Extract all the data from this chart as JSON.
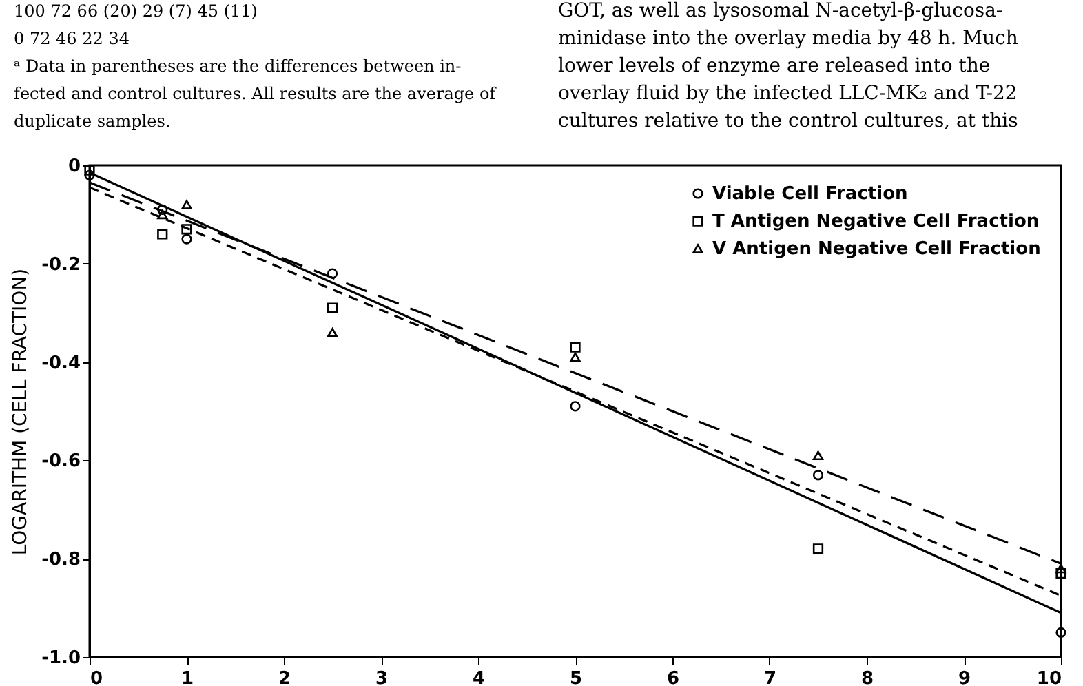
{
  "chart_data": {
    "type": "scatter",
    "ylabel": "LOGARITHM (CELL FRACTION)",
    "xlim": [
      0,
      10
    ],
    "xticks": [
      0,
      1,
      2,
      3,
      4,
      5,
      6,
      7,
      8,
      9,
      10
    ],
    "ylim": [
      -1.0,
      0
    ],
    "yticks": [
      0,
      -0.2,
      -0.4,
      -0.6,
      -0.8,
      {
        "value": -1.0,
        "label": "-1.0"
      }
    ],
    "grid": false,
    "legend": "top right",
    "series": [
      {
        "name": "Viable Cell Fraction",
        "marker": "circle",
        "color": "#000000",
        "x": [
          0,
          0.75,
          1,
          2.5,
          5,
          7.5,
          10
        ],
        "values": [
          -0.02,
          -0.09,
          -0.15,
          -0.22,
          -0.49,
          -0.63,
          -0.95
        ]
      },
      {
        "name": "T Antigen Negative Cell Fraction",
        "marker": "square",
        "color": "#000000",
        "x": [
          0,
          0.75,
          1,
          2.5,
          5,
          7.5,
          10
        ],
        "values": [
          -0.01,
          -0.14,
          -0.13,
          -0.29,
          -0.37,
          -0.78,
          -0.83
        ]
      },
      {
        "name": "V Antigen Negative Cell Fraction",
        "marker": "triangle",
        "color": "#000000",
        "x": [
          0.75,
          1,
          2.5,
          5,
          7.5,
          10
        ],
        "values": [
          -0.1,
          -0.08,
          -0.34,
          -0.39,
          -0.59,
          -0.82
        ]
      },
      {
        "type": "line",
        "line_style": "solid",
        "color": "#000000",
        "x": [
          0,
          10
        ],
        "values": [
          -0.015,
          -0.91
        ]
      },
      {
        "type": "line",
        "line_style": "dashed",
        "color": "#000000",
        "x": [
          0,
          10
        ],
        "values": [
          -0.045,
          -0.875
        ]
      },
      {
        "type": "line",
        "line_style": "dashed",
        "color": "#000000",
        "x": [
          0,
          10
        ],
        "values": [
          -0.035,
          -0.81
        ]
      }
    ],
    "annotations": [
      "100     72     66 (20)     29 (7)     45 (11)",
      "0     72     46     22     34",
      "ᵃ Data in parentheses are the differences between in-",
      "fected and control cultures. All results are the average of",
      "duplicate samples.",
      "GOT, as well as lysosomal N-acetyl-β-glucosa-",
      "minidase into the overlay media by 48 h. Much",
      "lower levels of enzyme are released into the",
      "overlay fluid by the infected LLC-MK₂ and T-22",
      "cultures relative to the control cultures, at this"
    ]
  }
}
